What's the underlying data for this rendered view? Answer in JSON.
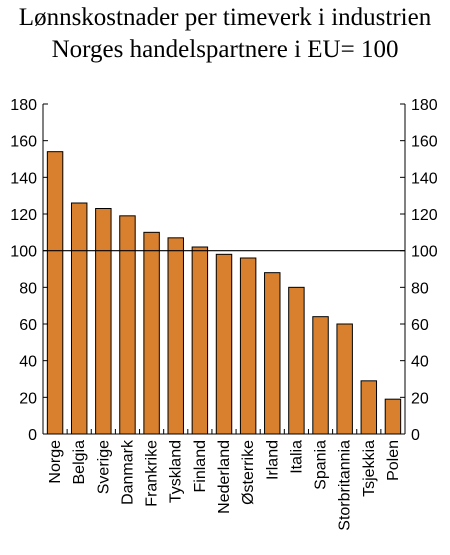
{
  "chart_data": {
    "type": "bar",
    "title": "Lønnskostnader per timeverk i industrien",
    "subtitle": "Norges handelspartnere i EU= 100",
    "xlabel": "",
    "ylabel": "",
    "ylim": [
      0,
      180
    ],
    "yticks": [
      0,
      20,
      40,
      60,
      80,
      100,
      120,
      140,
      160,
      180
    ],
    "y_axes": "left-and-right",
    "grid": false,
    "reference_line": 100,
    "bar_color": "#d9802e",
    "bar_edge_color": "#000000",
    "categories": [
      "Norge",
      "Belgia",
      "Sverige",
      "Danmark",
      "Frankrike",
      "Tyskland",
      "Finland",
      "Nederland",
      "Østerrike",
      "Irland",
      "Italia",
      "Spania",
      "Storbritannia",
      "Tsjekkia",
      "Polen"
    ],
    "values": [
      154,
      126,
      123,
      119,
      110,
      107,
      102,
      98,
      96,
      88,
      80,
      64,
      60,
      29,
      19
    ]
  }
}
